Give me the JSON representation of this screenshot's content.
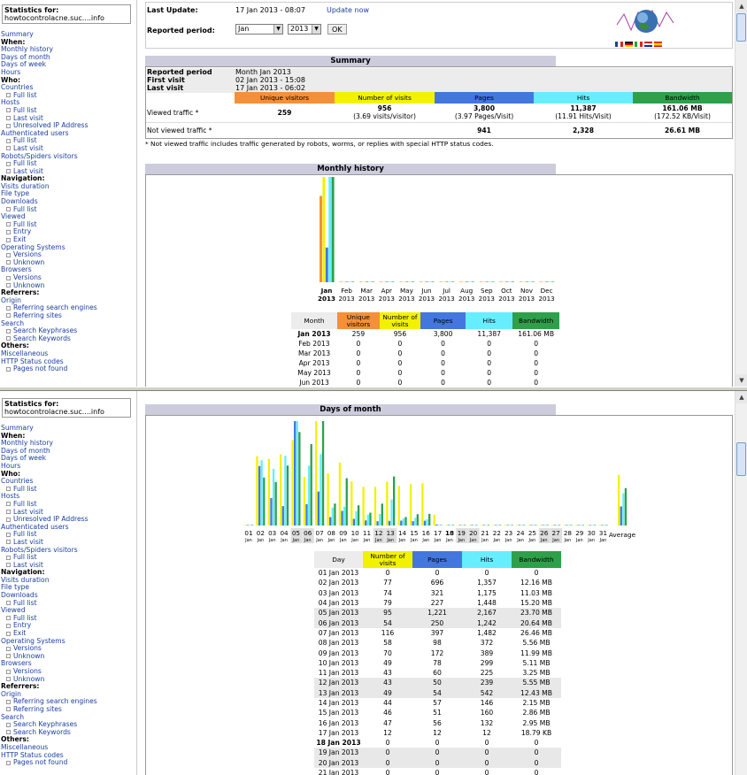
{
  "sidebar": {
    "stats_for_label": "Statistics for:",
    "site": "howtocontrolacne.suc....info",
    "nav": [
      {
        "t": "l",
        "label": "Summary"
      },
      {
        "t": "h",
        "label": "When:"
      },
      {
        "t": "l",
        "label": "Monthly history"
      },
      {
        "t": "l",
        "label": "Days of month"
      },
      {
        "t": "l",
        "label": "Days of week"
      },
      {
        "t": "l",
        "label": "Hours"
      },
      {
        "t": "h",
        "label": "Who:"
      },
      {
        "t": "l",
        "label": "Countries"
      },
      {
        "t": "s",
        "label": "Full list"
      },
      {
        "t": "l",
        "label": "Hosts"
      },
      {
        "t": "s",
        "label": "Full list"
      },
      {
        "t": "s",
        "label": "Last visit"
      },
      {
        "t": "s",
        "label": "Unresolved IP Address"
      },
      {
        "t": "l",
        "label": "Authenticated users"
      },
      {
        "t": "s",
        "label": "Full list"
      },
      {
        "t": "s",
        "label": "Last visit"
      },
      {
        "t": "l",
        "label": "Robots/Spiders visitors"
      },
      {
        "t": "s",
        "label": "Full list"
      },
      {
        "t": "s",
        "label": "Last visit"
      },
      {
        "t": "h",
        "label": "Navigation:"
      },
      {
        "t": "l",
        "label": "Visits duration"
      },
      {
        "t": "l",
        "label": "File type"
      },
      {
        "t": "l",
        "label": "Downloads"
      },
      {
        "t": "s",
        "label": "Full list"
      },
      {
        "t": "l",
        "label": "Viewed"
      },
      {
        "t": "s",
        "label": "Full list"
      },
      {
        "t": "s",
        "label": "Entry"
      },
      {
        "t": "s",
        "label": "Exit"
      },
      {
        "t": "l",
        "label": "Operating Systems"
      },
      {
        "t": "s",
        "label": "Versions"
      },
      {
        "t": "s",
        "label": "Unknown"
      },
      {
        "t": "l",
        "label": "Browsers"
      },
      {
        "t": "s",
        "label": "Versions"
      },
      {
        "t": "s",
        "label": "Unknown"
      },
      {
        "t": "h",
        "label": "Referrers:"
      },
      {
        "t": "l",
        "label": "Origin"
      },
      {
        "t": "s",
        "label": "Referring search engines"
      },
      {
        "t": "s",
        "label": "Referring sites"
      },
      {
        "t": "l",
        "label": "Search"
      },
      {
        "t": "s",
        "label": "Search Keyphrases"
      },
      {
        "t": "s",
        "label": "Search Keywords"
      },
      {
        "t": "h",
        "label": "Others:"
      },
      {
        "t": "l",
        "label": "Miscellaneous"
      },
      {
        "t": "l",
        "label": "HTTP Status codes"
      },
      {
        "t": "s",
        "label": "Pages not found"
      }
    ]
  },
  "header": {
    "last_update_label": "Last Update:",
    "last_update_value": "17 Jan 2013 - 08:07",
    "update_now": "Update now",
    "reported_period_label": "Reported period:",
    "month_value": "Jan",
    "year_value": "2013",
    "ok_label": "OK"
  },
  "summary": {
    "title": "Summary",
    "reported_period_label": "Reported period",
    "reported_period_value": "Month Jan 2013",
    "first_visit_label": "First visit",
    "first_visit_value": "02 Jan 2013 - 15:08",
    "last_visit_label": "Last visit",
    "last_visit_value": "17 Jan 2013 - 06:02",
    "cols": [
      "Unique visitors",
      "Number of visits",
      "Pages",
      "Hits",
      "Bandwidth"
    ],
    "viewed_label": "Viewed traffic *",
    "viewed": {
      "unique": "259",
      "visits": "956",
      "visits_sub": "(3.69 visits/visitor)",
      "pages": "3,800",
      "pages_sub": "(3.97 Pages/Visit)",
      "hits": "11,387",
      "hits_sub": "(11.91 Hits/Visit)",
      "bw": "161.06 MB",
      "bw_sub": "(172.52 KB/Visit)"
    },
    "not_viewed_label": "Not viewed traffic *",
    "not_viewed": {
      "pages": "941",
      "hits": "2,328",
      "bw": "26.61 MB"
    },
    "footnote": "* Not viewed traffic includes traffic generated by robots, worms, or replies with special HTTP status codes."
  },
  "monthly": {
    "title": "Monthly history",
    "table_cols": [
      "Month",
      "Unique visitors",
      "Number of visits",
      "Pages",
      "Hits",
      "Bandwidth"
    ],
    "rows": [
      [
        "Jan 2013",
        "259",
        "956",
        "3,800",
        "11,387",
        "161.06 MB"
      ],
      [
        "Feb 2013",
        "0",
        "0",
        "0",
        "0",
        "0"
      ],
      [
        "Mar 2013",
        "0",
        "0",
        "0",
        "0",
        "0"
      ],
      [
        "Apr 2013",
        "0",
        "0",
        "0",
        "0",
        "0"
      ],
      [
        "May 2013",
        "0",
        "0",
        "0",
        "0",
        "0"
      ],
      [
        "Jun 2013",
        "0",
        "0",
        "0",
        "0",
        "0"
      ]
    ]
  },
  "days": {
    "title": "Days of month",
    "table_cols": [
      "Day",
      "Number of visits",
      "Pages",
      "Hits",
      "Bandwidth"
    ],
    "rows": [
      [
        "01 Jan 2013",
        "0",
        "0",
        "0",
        "0"
      ],
      [
        "02 Jan 2013",
        "77",
        "696",
        "1,357",
        "12.16 MB"
      ],
      [
        "03 Jan 2013",
        "74",
        "321",
        "1,175",
        "11.03 MB"
      ],
      [
        "04 Jan 2013",
        "79",
        "227",
        "1,448",
        "15.20 MB"
      ],
      [
        "05 Jan 2013",
        "95",
        "1,221",
        "2,167",
        "23.70 MB"
      ],
      [
        "06 Jan 2013",
        "54",
        "250",
        "1,242",
        "20.64 MB"
      ],
      [
        "07 Jan 2013",
        "116",
        "397",
        "1,482",
        "26.46 MB"
      ],
      [
        "08 Jan 2013",
        "58",
        "98",
        "372",
        "5.56 MB"
      ],
      [
        "09 Jan 2013",
        "70",
        "172",
        "389",
        "11.99 MB"
      ],
      [
        "10 Jan 2013",
        "49",
        "78",
        "299",
        "5.11 MB"
      ],
      [
        "11 Jan 2013",
        "43",
        "60",
        "225",
        "3.25 MB"
      ],
      [
        "12 Jan 2013",
        "43",
        "50",
        "239",
        "5.55 MB"
      ],
      [
        "13 Jan 2013",
        "49",
        "54",
        "542",
        "12.43 MB"
      ],
      [
        "14 Jan 2013",
        "44",
        "57",
        "146",
        "2.15 MB"
      ],
      [
        "15 Jan 2013",
        "46",
        "51",
        "160",
        "2.86 MB"
      ],
      [
        "16 Jan 2013",
        "47",
        "56",
        "132",
        "2.95 MB"
      ],
      [
        "17 Jan 2013",
        "12",
        "12",
        "12",
        "18.79 KB"
      ],
      [
        "18 Jan 2013",
        "0",
        "0",
        "0",
        "0"
      ],
      [
        "19 Jan 2013",
        "0",
        "0",
        "0",
        "0"
      ],
      [
        "20 Jan 2013",
        "0",
        "0",
        "0",
        "0"
      ],
      [
        "21 Jan 2013",
        "0",
        "0",
        "0",
        "0"
      ]
    ]
  },
  "colors": {
    "unique": "#f4903a",
    "visits": "#f2f200",
    "pages": "#4477dd",
    "hits": "#66eeff",
    "bandwidth": "#2ea04a",
    "section": "#ccccdd"
  },
  "chart_data": [
    {
      "type": "bar",
      "title": "Monthly history",
      "categories": [
        "Jan 2013",
        "Feb 2013",
        "Mar 2013",
        "Apr 2013",
        "May 2013",
        "Jun 2013",
        "Jul 2013",
        "Aug 2013",
        "Sep 2013",
        "Oct 2013",
        "Nov 2013",
        "Dec 2013"
      ],
      "tick_top": [
        "Jan",
        "Feb",
        "Mar",
        "Apr",
        "May",
        "Jun",
        "Jul",
        "Aug",
        "Sep",
        "Oct",
        "Nov",
        "Dec"
      ],
      "tick_bottom": "2013",
      "series": [
        {
          "name": "Unique visitors",
          "values": [
            259,
            0,
            0,
            0,
            0,
            0,
            0,
            0,
            0,
            0,
            0,
            0
          ]
        },
        {
          "name": "Number of visits",
          "values": [
            956,
            0,
            0,
            0,
            0,
            0,
            0,
            0,
            0,
            0,
            0,
            0
          ]
        },
        {
          "name": "Pages",
          "values": [
            3800,
            0,
            0,
            0,
            0,
            0,
            0,
            0,
            0,
            0,
            0,
            0
          ]
        },
        {
          "name": "Hits",
          "values": [
            11387,
            0,
            0,
            0,
            0,
            0,
            0,
            0,
            0,
            0,
            0,
            0
          ]
        },
        {
          "name": "Bandwidth",
          "values": [
            161.06,
            0,
            0,
            0,
            0,
            0,
            0,
            0,
            0,
            0,
            0,
            0
          ]
        }
      ]
    },
    {
      "type": "bar",
      "title": "Days of month",
      "days": [
        "01",
        "02",
        "03",
        "04",
        "05",
        "06",
        "07",
        "08",
        "09",
        "10",
        "11",
        "12",
        "13",
        "14",
        "15",
        "16",
        "17",
        "18",
        "19",
        "20",
        "21",
        "22",
        "23",
        "24",
        "25",
        "26",
        "27",
        "28",
        "29",
        "30",
        "31"
      ],
      "tick_sub": "Jan",
      "average_label": "Average",
      "series": [
        {
          "name": "Number of visits",
          "values": [
            0,
            77,
            74,
            79,
            95,
            54,
            116,
            58,
            70,
            49,
            43,
            43,
            49,
            44,
            46,
            47,
            12,
            0,
            0,
            0,
            0,
            0,
            0,
            0,
            0,
            0,
            0,
            0,
            0,
            0,
            0
          ],
          "average": 56.2
        },
        {
          "name": "Pages",
          "values": [
            0,
            696,
            321,
            227,
            1221,
            250,
            397,
            98,
            172,
            78,
            60,
            50,
            54,
            57,
            51,
            56,
            12,
            0,
            0,
            0,
            0,
            0,
            0,
            0,
            0,
            0,
            0,
            0,
            0,
            0,
            0
          ],
          "average": 223.5
        },
        {
          "name": "Hits",
          "values": [
            0,
            1357,
            1175,
            1448,
            2167,
            1242,
            1482,
            372,
            389,
            299,
            225,
            239,
            542,
            146,
            160,
            132,
            12,
            0,
            0,
            0,
            0,
            0,
            0,
            0,
            0,
            0,
            0,
            0,
            0,
            0,
            0
          ],
          "average": 669.8
        },
        {
          "name": "Bandwidth",
          "values": [
            0,
            12.16,
            11.03,
            15.2,
            23.7,
            20.64,
            26.46,
            5.56,
            11.99,
            5.11,
            3.25,
            5.55,
            12.43,
            2.15,
            2.86,
            2.95,
            0.02,
            0,
            0,
            0,
            0,
            0,
            0,
            0,
            0,
            0,
            0,
            0,
            0,
            0,
            0
          ],
          "average": 9.47
        }
      ]
    }
  ]
}
